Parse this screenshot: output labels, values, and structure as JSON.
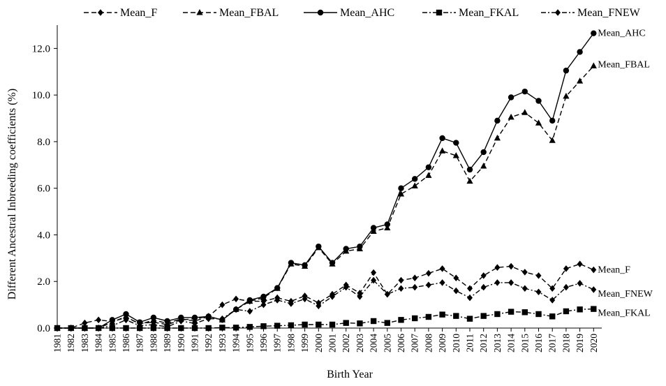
{
  "chart_data": {
    "type": "line",
    "xlabel": "Birth Year",
    "ylabel": "Different Ancestral Inbreeding coefficients (%)",
    "ylim": [
      0,
      13.0
    ],
    "yticks": [
      "0.0",
      "2.0",
      "4.0",
      "6.0",
      "8.0",
      "10.0",
      "12.0"
    ],
    "categories": [
      "1981",
      "1982",
      "1983",
      "1984",
      "1985",
      "1986",
      "1987",
      "1988",
      "1989",
      "1990",
      "1991",
      "1992",
      "1993",
      "1994",
      "1995",
      "1996",
      "1997",
      "1998",
      "1999",
      "2000",
      "2001",
      "2002",
      "2003",
      "2004",
      "2005",
      "2006",
      "2007",
      "2008",
      "2009",
      "2010",
      "2011",
      "2012",
      "2013",
      "2014",
      "2015",
      "2016",
      "2017",
      "2018",
      "2019",
      "2020"
    ],
    "grid": false,
    "legend_position": "top",
    "series": [
      {
        "name": "Mean_F",
        "marker": "diamond",
        "dash": "dashed",
        "end_label": "Mean_F",
        "values": [
          0.0,
          0.0,
          0.22,
          0.35,
          0.28,
          0.45,
          0.2,
          0.25,
          0.15,
          0.35,
          0.4,
          0.5,
          1.0,
          1.25,
          1.15,
          1.15,
          1.3,
          1.15,
          1.38,
          1.08,
          1.45,
          1.85,
          1.5,
          2.38,
          1.45,
          2.05,
          2.15,
          2.35,
          2.55,
          2.15,
          1.7,
          2.25,
          2.6,
          2.65,
          2.4,
          2.25,
          1.7,
          2.55,
          2.75,
          2.5
        ]
      },
      {
        "name": "Mean_FBAL",
        "marker": "triangle",
        "dash": "dashed",
        "end_label": "Mean_FBAL",
        "values": [
          0.0,
          0.0,
          0.0,
          0.0,
          0.25,
          0.5,
          0.15,
          0.35,
          0.2,
          0.4,
          0.3,
          0.5,
          0.35,
          0.8,
          1.15,
          1.3,
          1.7,
          2.75,
          2.65,
          3.45,
          2.75,
          3.3,
          3.4,
          4.15,
          4.3,
          5.75,
          6.1,
          6.55,
          7.6,
          7.4,
          6.3,
          6.95,
          8.15,
          9.05,
          9.25,
          8.8,
          8.05,
          9.95,
          10.6,
          11.25
        ]
      },
      {
        "name": "Mean_AHC",
        "marker": "circle",
        "dash": "solid",
        "end_label": "Mean_AHC",
        "values": [
          0.0,
          0.0,
          0.0,
          0.0,
          0.35,
          0.6,
          0.25,
          0.45,
          0.3,
          0.45,
          0.45,
          0.5,
          0.35,
          0.8,
          1.2,
          1.35,
          1.72,
          2.8,
          2.7,
          3.5,
          2.8,
          3.4,
          3.5,
          4.3,
          4.45,
          6.0,
          6.4,
          6.9,
          8.15,
          7.95,
          6.8,
          7.55,
          8.9,
          9.9,
          10.15,
          9.75,
          8.9,
          11.05,
          11.85,
          12.65
        ]
      },
      {
        "name": "Mean_FKAL",
        "marker": "square",
        "dash": "dashdot",
        "end_label": "Mean_FKAL",
        "values": [
          0.0,
          0.0,
          0.0,
          0.0,
          0.0,
          0.0,
          0.0,
          0.0,
          0.0,
          0.0,
          0.0,
          0.0,
          0.02,
          0.02,
          0.05,
          0.08,
          0.1,
          0.12,
          0.15,
          0.15,
          0.15,
          0.22,
          0.2,
          0.3,
          0.22,
          0.35,
          0.42,
          0.48,
          0.58,
          0.52,
          0.4,
          0.52,
          0.6,
          0.7,
          0.68,
          0.6,
          0.5,
          0.72,
          0.8,
          0.82
        ]
      },
      {
        "name": "Mean_FNEW",
        "marker": "diamond",
        "dash": "dashdot",
        "end_label": "Mean_FNEW",
        "values": [
          0.0,
          0.0,
          0.0,
          0.0,
          0.1,
          0.35,
          0.1,
          0.15,
          0.05,
          0.3,
          0.2,
          0.4,
          0.4,
          0.8,
          0.72,
          1.0,
          1.2,
          1.05,
          1.25,
          0.95,
          1.35,
          1.75,
          1.35,
          2.05,
          1.45,
          1.7,
          1.75,
          1.85,
          1.95,
          1.6,
          1.3,
          1.75,
          1.95,
          1.95,
          1.7,
          1.55,
          1.2,
          1.75,
          1.92,
          1.65
        ]
      }
    ]
  }
}
